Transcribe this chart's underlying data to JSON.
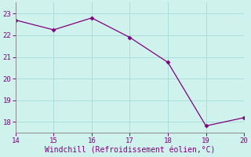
{
  "x": [
    14,
    15,
    16,
    17,
    18,
    19,
    20
  ],
  "y": [
    22.7,
    22.25,
    22.8,
    21.9,
    20.75,
    17.82,
    18.2
  ],
  "line_color": "#800080",
  "marker": "D",
  "marker_size": 2.5,
  "line_width": 0.9,
  "line_style": "-",
  "xlabel": "Windchill (Refroidissement éolien,°C)",
  "xlim": [
    14,
    20
  ],
  "ylim": [
    17.5,
    23.5
  ],
  "xticks": [
    14,
    15,
    16,
    17,
    18,
    19,
    20
  ],
  "yticks": [
    18,
    19,
    20,
    21,
    22,
    23
  ],
  "background_color": "#cff2ed",
  "plot_bg_color": "#cff2ed",
  "grid_color": "#aaddda",
  "tick_color": "#800080",
  "label_color": "#800080",
  "spine_color": "#888888",
  "tick_fontsize": 6.5,
  "xlabel_fontsize": 7
}
